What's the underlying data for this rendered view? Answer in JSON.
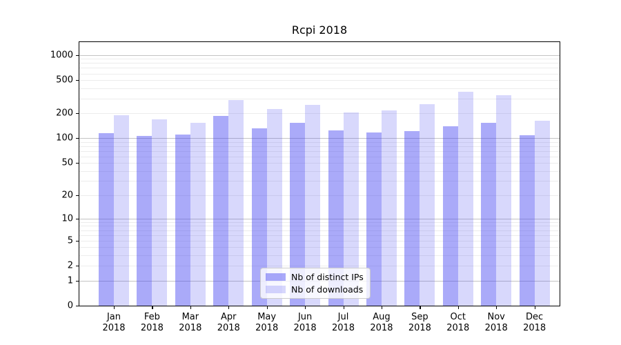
{
  "chart_data": {
    "type": "bar",
    "title": "Rcpi 2018",
    "categories": [
      "Jan 2018",
      "Feb 2018",
      "Mar 2018",
      "Apr 2018",
      "May 2018",
      "Jun 2018",
      "Jul 2018",
      "Aug 2018",
      "Sep 2018",
      "Oct 2018",
      "Nov 2018",
      "Dec 2018"
    ],
    "x_tick_months": [
      "Jan",
      "Feb",
      "Mar",
      "Apr",
      "May",
      "Jun",
      "Jul",
      "Aug",
      "Sep",
      "Oct",
      "Nov",
      "Dec"
    ],
    "x_tick_year": "2018",
    "series": [
      {
        "name": "Nb of distinct IPs",
        "color": "rgba(70,70,242,0.46)",
        "values": [
          115,
          107,
          111,
          187,
          131,
          154,
          125,
          118,
          123,
          140,
          152,
          108
        ]
      },
      {
        "name": "Nb of downloads",
        "color": "rgba(70,70,242,0.21)",
        "values": [
          188,
          168,
          153,
          290,
          226,
          252,
          205,
          218,
          257,
          362,
          329,
          162
        ]
      }
    ],
    "yscale": "log1p",
    "ylim": [
      0,
      1427
    ],
    "y_ticks": [
      0,
      1,
      2,
      5,
      10,
      20,
      50,
      100,
      200,
      500,
      1000
    ],
    "y_gridlines": {
      "major": [
        1,
        10,
        100,
        1000
      ],
      "minor": [
        2,
        3,
        4,
        5,
        6,
        7,
        8,
        9,
        20,
        30,
        40,
        50,
        60,
        70,
        80,
        90,
        200,
        300,
        400,
        500,
        600,
        700,
        800,
        900
      ]
    },
    "grid_colors": {
      "major": "#c3c3c3",
      "minor": "#ececec"
    },
    "axis_color": "#000000",
    "background": "#ffffff",
    "legend": {
      "entries": [
        "Nb of distinct IPs",
        "Nb of downloads"
      ],
      "position": "lower center"
    }
  }
}
